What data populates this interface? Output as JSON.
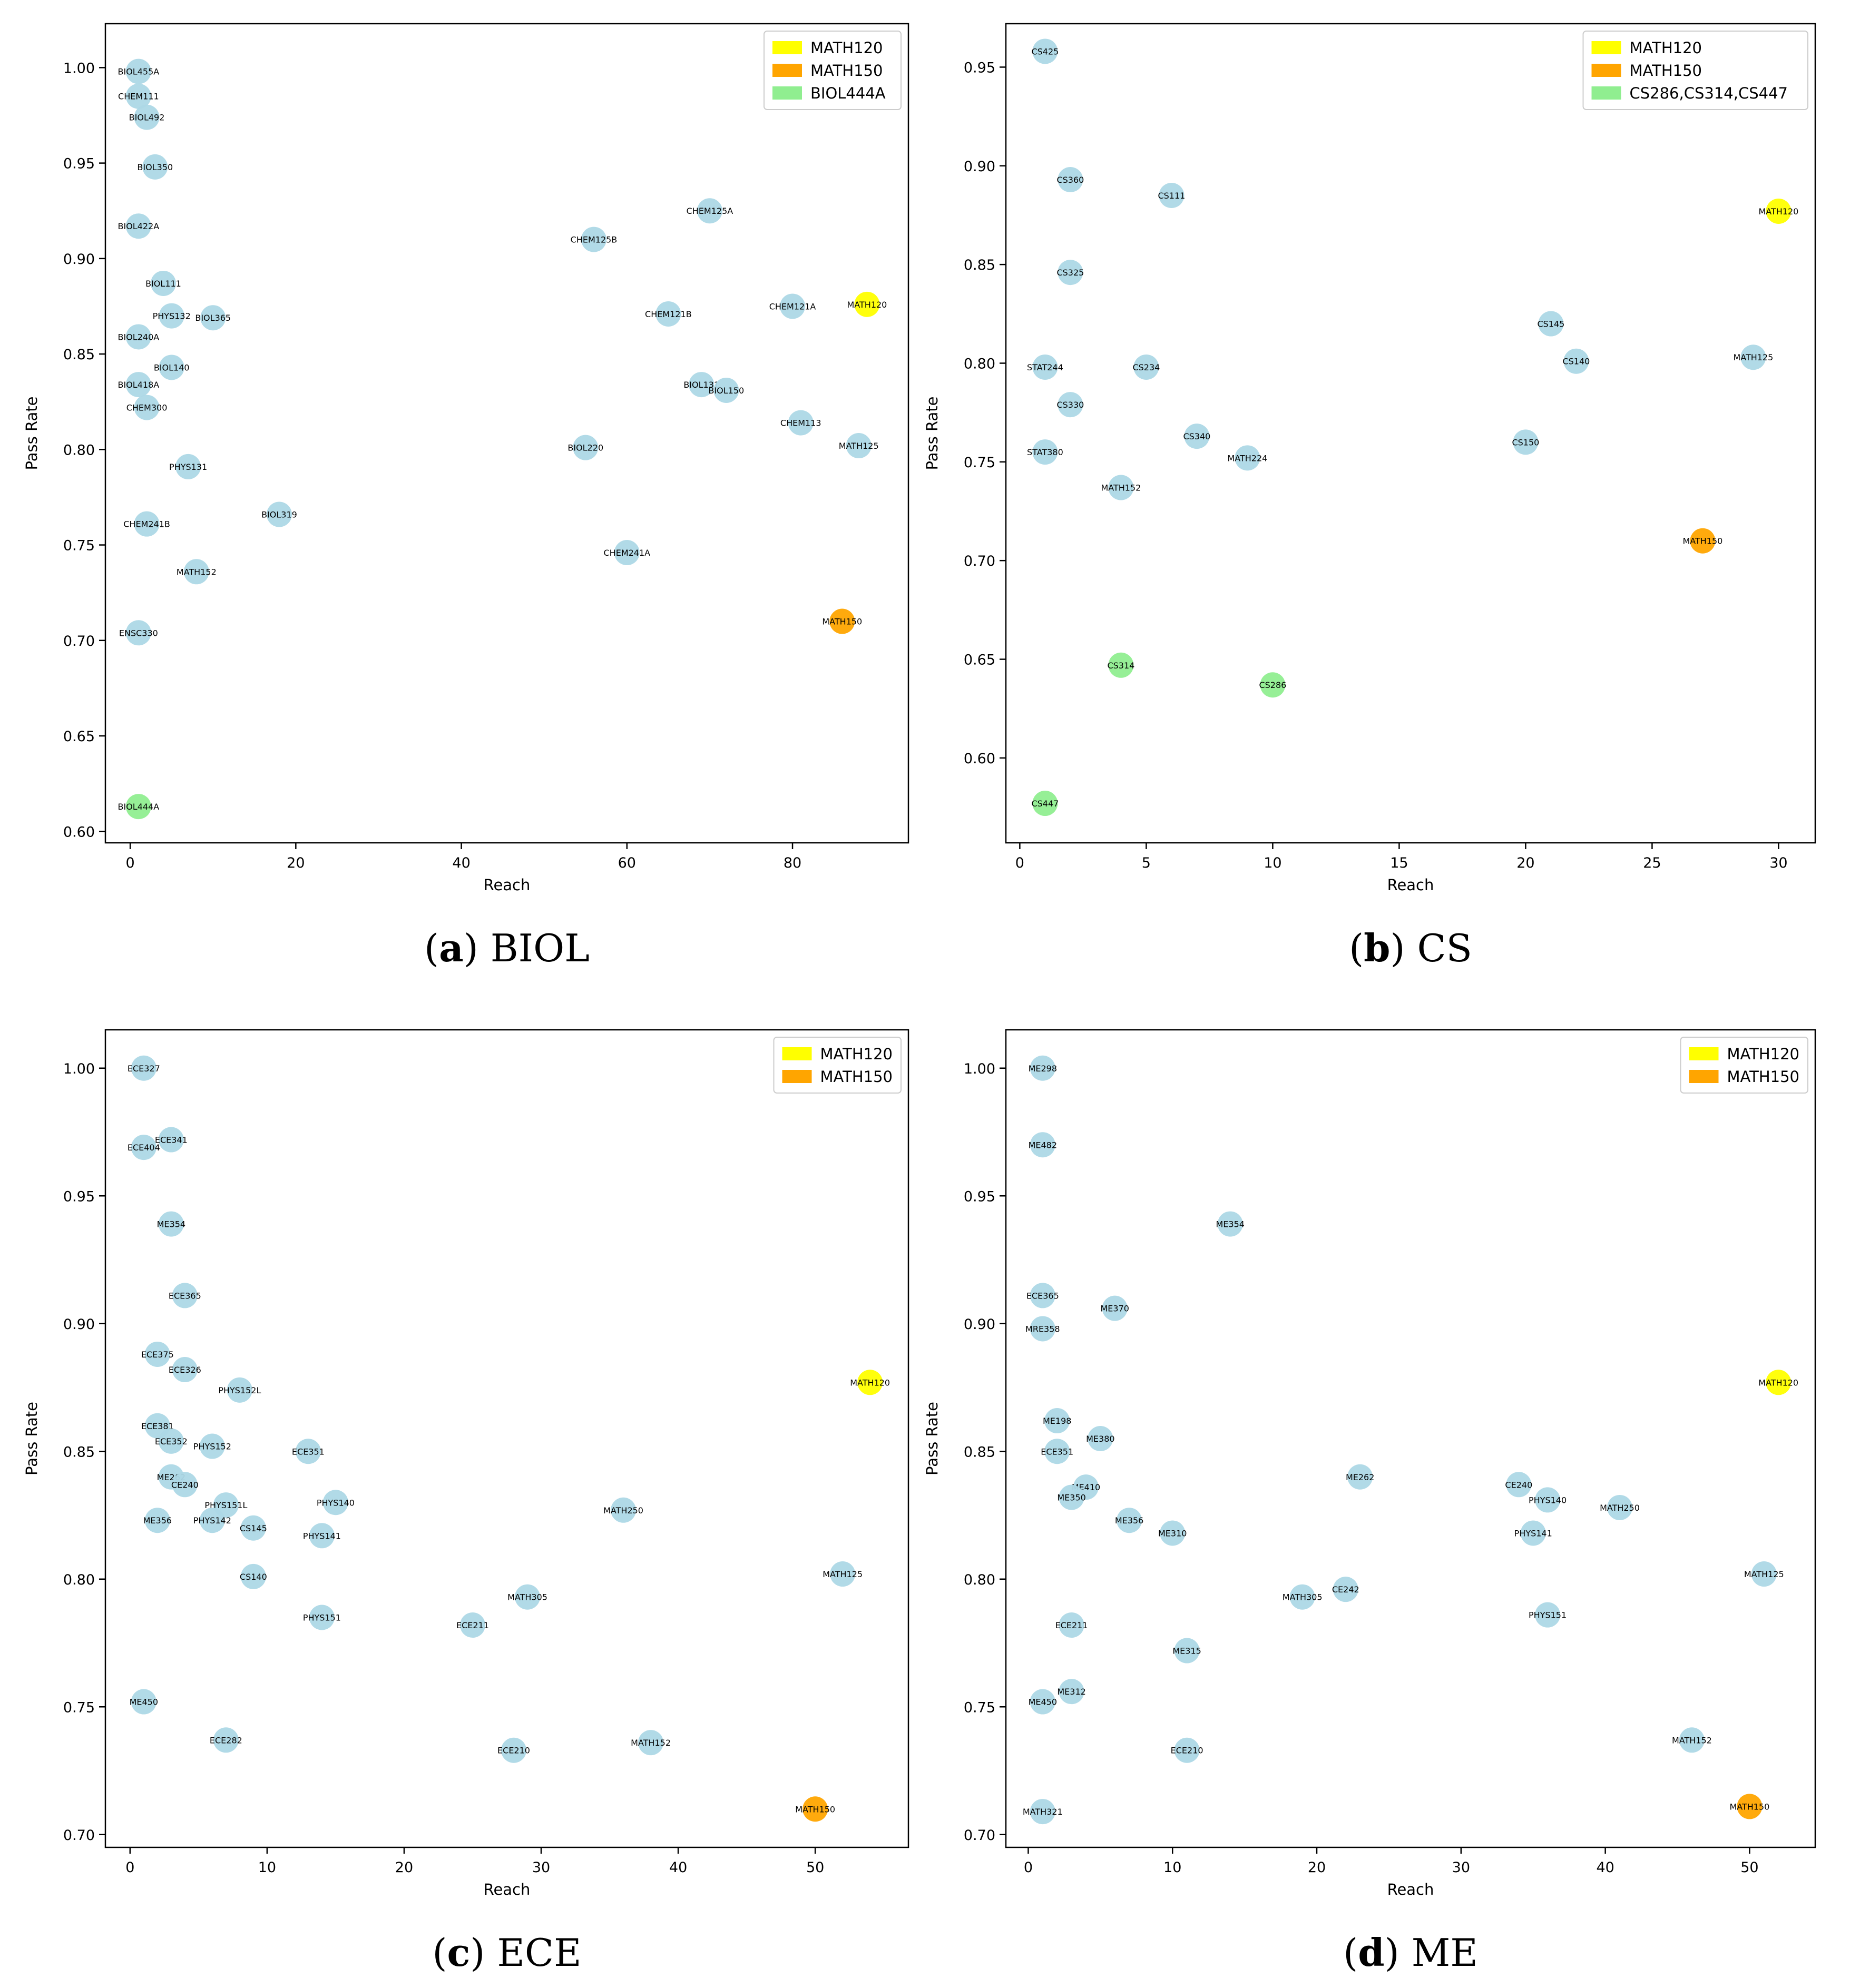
{
  "colors": {
    "point": "#add8e6",
    "math120": "#ffff00",
    "math150": "#ffa500",
    "special": "#90ee90",
    "axis": "#000000"
  },
  "chart_data": [
    {
      "type": "scatter",
      "caption_letter": "a",
      "caption_text": "BIOL",
      "xlabel": "Reach",
      "ylabel": "Pass Rate",
      "xlim": [
        -3,
        94
      ],
      "ylim": [
        0.594,
        1.023
      ],
      "xticks": [
        0,
        20,
        40,
        60,
        80
      ],
      "yticks": [
        0.6,
        0.65,
        0.7,
        0.75,
        0.8,
        0.85,
        0.9,
        0.95,
        1.0
      ],
      "ytick_labels": [
        "0.60",
        "0.65",
        "0.70",
        "0.75",
        "0.80",
        "0.85",
        "0.90",
        "0.95",
        "1.00"
      ],
      "legend": [
        {
          "label": "MATH120",
          "color": "#ffff00"
        },
        {
          "label": "MATH150",
          "color": "#ffa500"
        },
        {
          "label": "BIOL444A",
          "color": "#90ee90"
        }
      ],
      "points": [
        {
          "label": "BIOL455A",
          "x": 1,
          "y": 0.998,
          "group": "normal"
        },
        {
          "label": "CHEM111",
          "x": 1,
          "y": 0.985,
          "group": "normal"
        },
        {
          "label": "BIOL492",
          "x": 2,
          "y": 0.974,
          "group": "normal"
        },
        {
          "label": "BIOL350",
          "x": 3,
          "y": 0.948,
          "group": "normal"
        },
        {
          "label": "BIOL422A",
          "x": 1,
          "y": 0.917,
          "group": "normal"
        },
        {
          "label": "BIOL111",
          "x": 4,
          "y": 0.887,
          "group": "normal"
        },
        {
          "label": "PHYS132",
          "x": 5,
          "y": 0.87,
          "group": "normal"
        },
        {
          "label": "BIOL365",
          "x": 10,
          "y": 0.869,
          "group": "normal"
        },
        {
          "label": "BIOL240A",
          "x": 1,
          "y": 0.859,
          "group": "normal"
        },
        {
          "label": "BIOL140",
          "x": 5,
          "y": 0.843,
          "group": "normal"
        },
        {
          "label": "BIOL418A",
          "x": 1,
          "y": 0.834,
          "group": "normal"
        },
        {
          "label": "CHEM300",
          "x": 2,
          "y": 0.822,
          "group": "normal"
        },
        {
          "label": "PHYS131",
          "x": 7,
          "y": 0.791,
          "group": "normal"
        },
        {
          "label": "CHEM241B",
          "x": 2,
          "y": 0.761,
          "group": "normal"
        },
        {
          "label": "BIOL319",
          "x": 18,
          "y": 0.766,
          "group": "normal"
        },
        {
          "label": "MATH152",
          "x": 8,
          "y": 0.736,
          "group": "normal"
        },
        {
          "label": "ENSC330",
          "x": 1,
          "y": 0.704,
          "group": "normal"
        },
        {
          "label": "BIOL444A",
          "x": 1,
          "y": 0.613,
          "group": "special"
        },
        {
          "label": "CHEM125B",
          "x": 56,
          "y": 0.91,
          "group": "normal"
        },
        {
          "label": "CHEM125A",
          "x": 70,
          "y": 0.925,
          "group": "normal"
        },
        {
          "label": "CHEM121B",
          "x": 65,
          "y": 0.871,
          "group": "normal"
        },
        {
          "label": "CHEM121A",
          "x": 80,
          "y": 0.875,
          "group": "normal"
        },
        {
          "label": "MATH120",
          "x": 89,
          "y": 0.876,
          "group": "math120"
        },
        {
          "label": "BIOL131",
          "x": 69,
          "y": 0.834,
          "group": "normal"
        },
        {
          "label": "BIOL150",
          "x": 72,
          "y": 0.831,
          "group": "normal"
        },
        {
          "label": "CHEM113",
          "x": 81,
          "y": 0.814,
          "group": "normal"
        },
        {
          "label": "BIOL220",
          "x": 55,
          "y": 0.801,
          "group": "normal"
        },
        {
          "label": "MATH125",
          "x": 88,
          "y": 0.802,
          "group": "normal"
        },
        {
          "label": "CHEM241A",
          "x": 60,
          "y": 0.746,
          "group": "normal"
        },
        {
          "label": "MATH150",
          "x": 86,
          "y": 0.71,
          "group": "math150"
        }
      ]
    },
    {
      "type": "scatter",
      "caption_letter": "b",
      "caption_text": "CS",
      "xlabel": "Reach",
      "ylabel": "Pass Rate",
      "xlim": [
        -0.55,
        31.45
      ],
      "ylim": [
        0.557,
        0.972
      ],
      "xticks": [
        0,
        5,
        10,
        15,
        20,
        25,
        30
      ],
      "yticks": [
        0.6,
        0.65,
        0.7,
        0.75,
        0.8,
        0.85,
        0.9,
        0.95
      ],
      "ytick_labels": [
        "0.60",
        "0.65",
        "0.70",
        "0.75",
        "0.80",
        "0.85",
        "0.90",
        "0.95"
      ],
      "legend": [
        {
          "label": "MATH120",
          "color": "#ffff00"
        },
        {
          "label": "MATH150",
          "color": "#ffa500"
        },
        {
          "label": "CS286,CS314,CS447",
          "color": "#90ee90"
        }
      ],
      "points": [
        {
          "label": "CS425",
          "x": 1,
          "y": 0.958,
          "group": "normal"
        },
        {
          "label": "CS360",
          "x": 2,
          "y": 0.893,
          "group": "normal"
        },
        {
          "label": "CS111",
          "x": 6,
          "y": 0.885,
          "group": "normal"
        },
        {
          "label": "CS325",
          "x": 2,
          "y": 0.846,
          "group": "normal"
        },
        {
          "label": "STAT244",
          "x": 1,
          "y": 0.798,
          "group": "normal"
        },
        {
          "label": "CS234",
          "x": 5,
          "y": 0.798,
          "group": "normal"
        },
        {
          "label": "CS330",
          "x": 2,
          "y": 0.779,
          "group": "normal"
        },
        {
          "label": "CS340",
          "x": 7,
          "y": 0.763,
          "group": "normal"
        },
        {
          "label": "STAT380",
          "x": 1,
          "y": 0.755,
          "group": "normal"
        },
        {
          "label": "MATH224",
          "x": 9,
          "y": 0.752,
          "group": "normal"
        },
        {
          "label": "MATH152",
          "x": 4,
          "y": 0.737,
          "group": "normal"
        },
        {
          "label": "CS314",
          "x": 4,
          "y": 0.647,
          "group": "special"
        },
        {
          "label": "CS286",
          "x": 10,
          "y": 0.637,
          "group": "special"
        },
        {
          "label": "CS447",
          "x": 1,
          "y": 0.577,
          "group": "special"
        },
        {
          "label": "CS145",
          "x": 21,
          "y": 0.82,
          "group": "normal"
        },
        {
          "label": "CS140",
          "x": 22,
          "y": 0.801,
          "group": "normal"
        },
        {
          "label": "CS150",
          "x": 20,
          "y": 0.76,
          "group": "normal"
        },
        {
          "label": "MATH120",
          "x": 30,
          "y": 0.877,
          "group": "math120"
        },
        {
          "label": "MATH125",
          "x": 29,
          "y": 0.803,
          "group": "normal"
        },
        {
          "label": "MATH150",
          "x": 27,
          "y": 0.71,
          "group": "math150"
        }
      ]
    },
    {
      "type": "scatter",
      "caption_letter": "c",
      "caption_text": "ECE",
      "xlabel": "Reach",
      "ylabel": "Pass Rate",
      "xlim": [
        -1.8,
        56.8
      ],
      "ylim": [
        0.695,
        1.015
      ],
      "xticks": [
        0,
        10,
        20,
        30,
        40,
        50
      ],
      "yticks": [
        0.7,
        0.75,
        0.8,
        0.85,
        0.9,
        0.95,
        1.0
      ],
      "ytick_labels": [
        "0.70",
        "0.75",
        "0.80",
        "0.85",
        "0.90",
        "0.95",
        "1.00"
      ],
      "legend": [
        {
          "label": "MATH120",
          "color": "#ffff00"
        },
        {
          "label": "MATH150",
          "color": "#ffa500"
        }
      ],
      "points": [
        {
          "label": "ECE327",
          "x": 1,
          "y": 1.0,
          "group": "normal"
        },
        {
          "label": "ECE341",
          "x": 3,
          "y": 0.972,
          "group": "normal"
        },
        {
          "label": "ECE404",
          "x": 1,
          "y": 0.969,
          "group": "normal"
        },
        {
          "label": "ME354",
          "x": 3,
          "y": 0.939,
          "group": "normal"
        },
        {
          "label": "ECE365",
          "x": 4,
          "y": 0.911,
          "group": "normal"
        },
        {
          "label": "ECE375",
          "x": 2,
          "y": 0.888,
          "group": "normal"
        },
        {
          "label": "ECE326",
          "x": 4,
          "y": 0.882,
          "group": "normal"
        },
        {
          "label": "PHYS152L",
          "x": 8,
          "y": 0.874,
          "group": "normal"
        },
        {
          "label": "ECE381",
          "x": 2,
          "y": 0.86,
          "group": "normal"
        },
        {
          "label": "ECE352",
          "x": 3,
          "y": 0.854,
          "group": "normal"
        },
        {
          "label": "PHYS152",
          "x": 6,
          "y": 0.852,
          "group": "normal"
        },
        {
          "label": "ECE351",
          "x": 13,
          "y": 0.85,
          "group": "normal"
        },
        {
          "label": "ME262",
          "x": 3,
          "y": 0.84,
          "group": "normal"
        },
        {
          "label": "CE240",
          "x": 4,
          "y": 0.837,
          "group": "normal"
        },
        {
          "label": "PHYS140",
          "x": 15,
          "y": 0.83,
          "group": "normal"
        },
        {
          "label": "PHYS151L",
          "x": 7,
          "y": 0.829,
          "group": "normal"
        },
        {
          "label": "ME356",
          "x": 2,
          "y": 0.823,
          "group": "normal"
        },
        {
          "label": "PHYS142",
          "x": 6,
          "y": 0.823,
          "group": "normal"
        },
        {
          "label": "CS145",
          "x": 9,
          "y": 0.82,
          "group": "normal"
        },
        {
          "label": "PHYS141",
          "x": 14,
          "y": 0.817,
          "group": "normal"
        },
        {
          "label": "CS140",
          "x": 9,
          "y": 0.801,
          "group": "normal"
        },
        {
          "label": "PHYS151",
          "x": 14,
          "y": 0.785,
          "group": "normal"
        },
        {
          "label": "ECE211",
          "x": 25,
          "y": 0.782,
          "group": "normal"
        },
        {
          "label": "MATH305",
          "x": 29,
          "y": 0.793,
          "group": "normal"
        },
        {
          "label": "MATH250",
          "x": 36,
          "y": 0.827,
          "group": "normal"
        },
        {
          "label": "ME450",
          "x": 1,
          "y": 0.752,
          "group": "normal"
        },
        {
          "label": "ECE282",
          "x": 7,
          "y": 0.737,
          "group": "normal"
        },
        {
          "label": "ECE210",
          "x": 28,
          "y": 0.733,
          "group": "normal"
        },
        {
          "label": "MATH152",
          "x": 38,
          "y": 0.736,
          "group": "normal"
        },
        {
          "label": "MATH120",
          "x": 54,
          "y": 0.877,
          "group": "math120"
        },
        {
          "label": "MATH125",
          "x": 52,
          "y": 0.802,
          "group": "normal"
        },
        {
          "label": "MATH150",
          "x": 50,
          "y": 0.71,
          "group": "math150"
        }
      ]
    },
    {
      "type": "scatter",
      "caption_letter": "d",
      "caption_text": "ME",
      "xlabel": "Reach",
      "ylabel": "Pass Rate",
      "xlim": [
        -1.55,
        54.55
      ],
      "ylim": [
        0.695,
        1.015
      ],
      "xticks": [
        0,
        10,
        20,
        30,
        40,
        50
      ],
      "yticks": [
        0.7,
        0.75,
        0.8,
        0.85,
        0.9,
        0.95,
        1.0
      ],
      "ytick_labels": [
        "0.70",
        "0.75",
        "0.80",
        "0.85",
        "0.90",
        "0.95",
        "1.00"
      ],
      "legend": [
        {
          "label": "MATH120",
          "color": "#ffff00"
        },
        {
          "label": "MATH150",
          "color": "#ffa500"
        }
      ],
      "points": [
        {
          "label": "ME298",
          "x": 1,
          "y": 1.0,
          "group": "normal"
        },
        {
          "label": "ME482",
          "x": 1,
          "y": 0.97,
          "group": "normal"
        },
        {
          "label": "ME354",
          "x": 14,
          "y": 0.939,
          "group": "normal"
        },
        {
          "label": "ECE365",
          "x": 1,
          "y": 0.911,
          "group": "normal"
        },
        {
          "label": "ME370",
          "x": 6,
          "y": 0.906,
          "group": "normal"
        },
        {
          "label": "MRE358",
          "x": 1,
          "y": 0.898,
          "group": "normal"
        },
        {
          "label": "ME198",
          "x": 2,
          "y": 0.862,
          "group": "normal"
        },
        {
          "label": "ME380",
          "x": 5,
          "y": 0.855,
          "group": "normal"
        },
        {
          "label": "ECE351",
          "x": 2,
          "y": 0.85,
          "group": "normal"
        },
        {
          "label": "ME410",
          "x": 4,
          "y": 0.836,
          "group": "normal"
        },
        {
          "label": "ME350",
          "x": 3,
          "y": 0.832,
          "group": "normal"
        },
        {
          "label": "ME356",
          "x": 7,
          "y": 0.823,
          "group": "normal"
        },
        {
          "label": "ME310",
          "x": 10,
          "y": 0.818,
          "group": "normal"
        },
        {
          "label": "ME262",
          "x": 23,
          "y": 0.84,
          "group": "normal"
        },
        {
          "label": "CE240",
          "x": 34,
          "y": 0.837,
          "group": "normal"
        },
        {
          "label": "PHYS140",
          "x": 36,
          "y": 0.831,
          "group": "normal"
        },
        {
          "label": "MATH250",
          "x": 41,
          "y": 0.828,
          "group": "normal"
        },
        {
          "label": "PHYS141",
          "x": 35,
          "y": 0.818,
          "group": "normal"
        },
        {
          "label": "MATH305",
          "x": 19,
          "y": 0.793,
          "group": "normal"
        },
        {
          "label": "CE242",
          "x": 22,
          "y": 0.796,
          "group": "normal"
        },
        {
          "label": "ECE211",
          "x": 3,
          "y": 0.782,
          "group": "normal"
        },
        {
          "label": "PHYS151",
          "x": 36,
          "y": 0.786,
          "group": "normal"
        },
        {
          "label": "ME315",
          "x": 11,
          "y": 0.772,
          "group": "normal"
        },
        {
          "label": "ME312",
          "x": 3,
          "y": 0.756,
          "group": "normal"
        },
        {
          "label": "ME450",
          "x": 1,
          "y": 0.752,
          "group": "normal"
        },
        {
          "label": "ECE210",
          "x": 11,
          "y": 0.733,
          "group": "normal"
        },
        {
          "label": "MATH321",
          "x": 1,
          "y": 0.709,
          "group": "normal"
        },
        {
          "label": "MATH152",
          "x": 46,
          "y": 0.737,
          "group": "normal"
        },
        {
          "label": "MATH120",
          "x": 52,
          "y": 0.877,
          "group": "math120"
        },
        {
          "label": "MATH125",
          "x": 51,
          "y": 0.802,
          "group": "normal"
        },
        {
          "label": "MATH150",
          "x": 50,
          "y": 0.711,
          "group": "math150"
        }
      ]
    }
  ]
}
